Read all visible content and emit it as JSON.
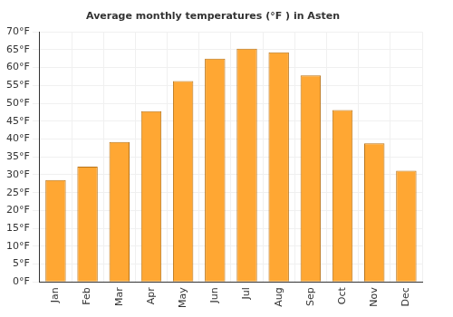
{
  "chart_data": {
    "type": "bar",
    "title": "Average monthly temperatures (°F ) in Asten",
    "categories": [
      "Jan",
      "Feb",
      "Mar",
      "Apr",
      "May",
      "Jun",
      "Jul",
      "Aug",
      "Sep",
      "Oct",
      "Nov",
      "Dec"
    ],
    "values": [
      28.5,
      32.3,
      39.2,
      47.8,
      56.2,
      62.5,
      65.3,
      64.3,
      57.8,
      48.1,
      38.8,
      31.1
    ],
    "color": "#ffa733",
    "ylim": [
      0,
      70
    ],
    "yticks": [
      {
        "value": 0,
        "label": "0°F"
      },
      {
        "value": 5,
        "label": "5°F"
      },
      {
        "value": 10,
        "label": "10°F"
      },
      {
        "value": 15,
        "label": "15°F"
      },
      {
        "value": 20,
        "label": "20°F"
      },
      {
        "value": 25,
        "label": "25°F"
      },
      {
        "value": 30,
        "label": "30°F"
      },
      {
        "value": 35,
        "label": "35°F"
      },
      {
        "value": 40,
        "label": "40°F"
      },
      {
        "value": 45,
        "label": "45°F"
      },
      {
        "value": 50,
        "label": "50°F"
      },
      {
        "value": 55,
        "label": "55°F"
      },
      {
        "value": 60,
        "label": "60°F"
      },
      {
        "value": 65,
        "label": "65°F"
      },
      {
        "value": 70,
        "label": "70°F"
      }
    ],
    "grid": true
  }
}
